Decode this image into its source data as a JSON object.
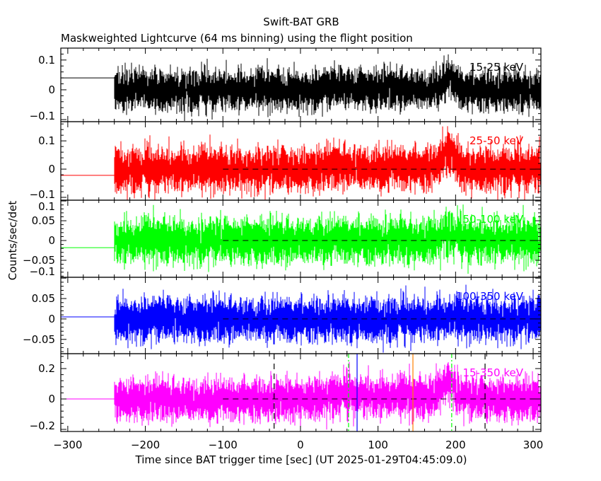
{
  "chart_data": {
    "type": "line",
    "title": "Swift-BAT GRB",
    "subtitle": "Maskweighted Lightcurve (64 ms binning) using the flight position",
    "xlabel": "Time since BAT trigger time [sec] (UT 2025-01-29T04:45:09.0)",
    "ylabel": "Counts/sec/det",
    "xlim": [
      -309,
      310
    ],
    "x_ticks": [
      -300,
      -200,
      -100,
      0,
      100,
      200,
      300
    ],
    "grid": false,
    "panels": [
      {
        "name": "15-25 keV",
        "color": "#000000",
        "ylim": [
          -0.107,
          0.14
        ],
        "y_ticks": [
          -0.1,
          0,
          0.1
        ],
        "y_tick_labels": [
          "−0.1",
          "0",
          "0.1"
        ],
        "pre_trigger_level": 0.04,
        "data_start": -240,
        "zero_line": false
      },
      {
        "name": "25-50 keV",
        "color": "#ff0000",
        "ylim": [
          -0.11,
          0.168
        ],
        "y_ticks": [
          -0.1,
          0,
          0.1
        ],
        "y_tick_labels": [
          "−0.1",
          "0",
          "0.1"
        ],
        "pre_trigger_level": -0.022,
        "data_start": -240,
        "zero_line": true
      },
      {
        "name": "50-100 keV",
        "color": "#00ff00",
        "ylim": [
          -0.093,
          0.102
        ],
        "y_ticks": [
          -0.1,
          -0.05,
          0,
          0.05,
          0.1
        ],
        "y_tick_labels": [
          "−0.1",
          "−0.05",
          "0",
          "0.05",
          "0.1"
        ],
        "pre_trigger_level": -0.018,
        "data_start": -240,
        "zero_line": true
      },
      {
        "name": "100-350 keV",
        "color": "#0000ff",
        "ylim": [
          -0.085,
          0.102
        ],
        "y_ticks": [
          -0.05,
          0,
          0.05
        ],
        "y_tick_labels": [
          "−0.05",
          "0",
          "0.05"
        ],
        "pre_trigger_level": 0.005,
        "data_start": -240,
        "zero_line": true
      },
      {
        "name": "15-350 keV",
        "color": "#ff00ff",
        "ylim": [
          -0.214,
          0.298
        ],
        "y_ticks": [
          -0.2,
          0,
          0.2
        ],
        "y_tick_labels": [
          "−0.2",
          "0",
          "0.2"
        ],
        "pre_trigger_level": 0.0,
        "data_start": -240,
        "zero_line": true
      }
    ],
    "vertical_markers": [
      {
        "x": -34,
        "color": "#000000",
        "style": "dashed"
      },
      {
        "x": 62,
        "color": "#00ff00",
        "style": "dash-dot"
      },
      {
        "x": 73,
        "color": "#0000ff",
        "style": "solid"
      },
      {
        "x": 145,
        "color": "#ff8000",
        "style": "solid"
      },
      {
        "x": 195,
        "color": "#00ff00",
        "style": "dash-dot"
      },
      {
        "x": 238,
        "color": "#000000",
        "style": "dashed"
      }
    ],
    "zero_line_start": -100,
    "burst_peak_time": 190
  }
}
